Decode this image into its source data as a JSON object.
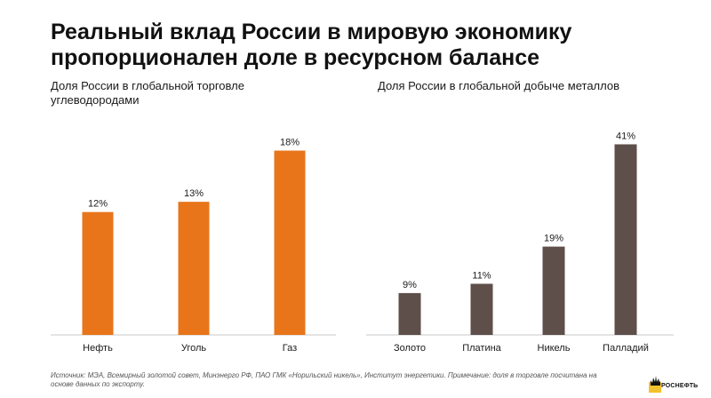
{
  "title": "Реальный вклад России в мировую экономику пропорционален доле в ресурсном балансе",
  "colors": {
    "orange": "#E8751A",
    "brown": "#5E4F4A",
    "axis": "#c8c8c8",
    "logo_yellow": "#F2C230"
  },
  "chart_data": [
    {
      "type": "bar",
      "title": "Доля России в глобальной торговле углеводородами",
      "categories": [
        "Нефть",
        "Уголь",
        "Газ"
      ],
      "values": [
        12,
        13,
        18
      ],
      "value_labels": [
        "12%",
        "13%",
        "18%"
      ],
      "unit": "%",
      "ylim": [
        0,
        19
      ],
      "color": "#E8751A",
      "grid": false
    },
    {
      "type": "bar",
      "title": "Доля России в глобальной добыче металлов",
      "categories": [
        "Золото",
        "Платина",
        "Никель",
        "Палладий"
      ],
      "values": [
        9,
        11,
        19,
        41
      ],
      "value_labels": [
        "9%",
        "11%",
        "19%",
        "41%"
      ],
      "unit": "%",
      "ylim": [
        0,
        43
      ],
      "color": "#5E4F4A",
      "grid": false
    }
  ],
  "source": "Источник: МЭА, Всемирный золотой совет, Минэнерго РФ, ПАО ГМК «Норильский никель», Институт энергетики. Примечание: доля в торговле посчитана на основе данных по экспорту.",
  "logo": {
    "text": "РОСНЕФТЬ"
  }
}
